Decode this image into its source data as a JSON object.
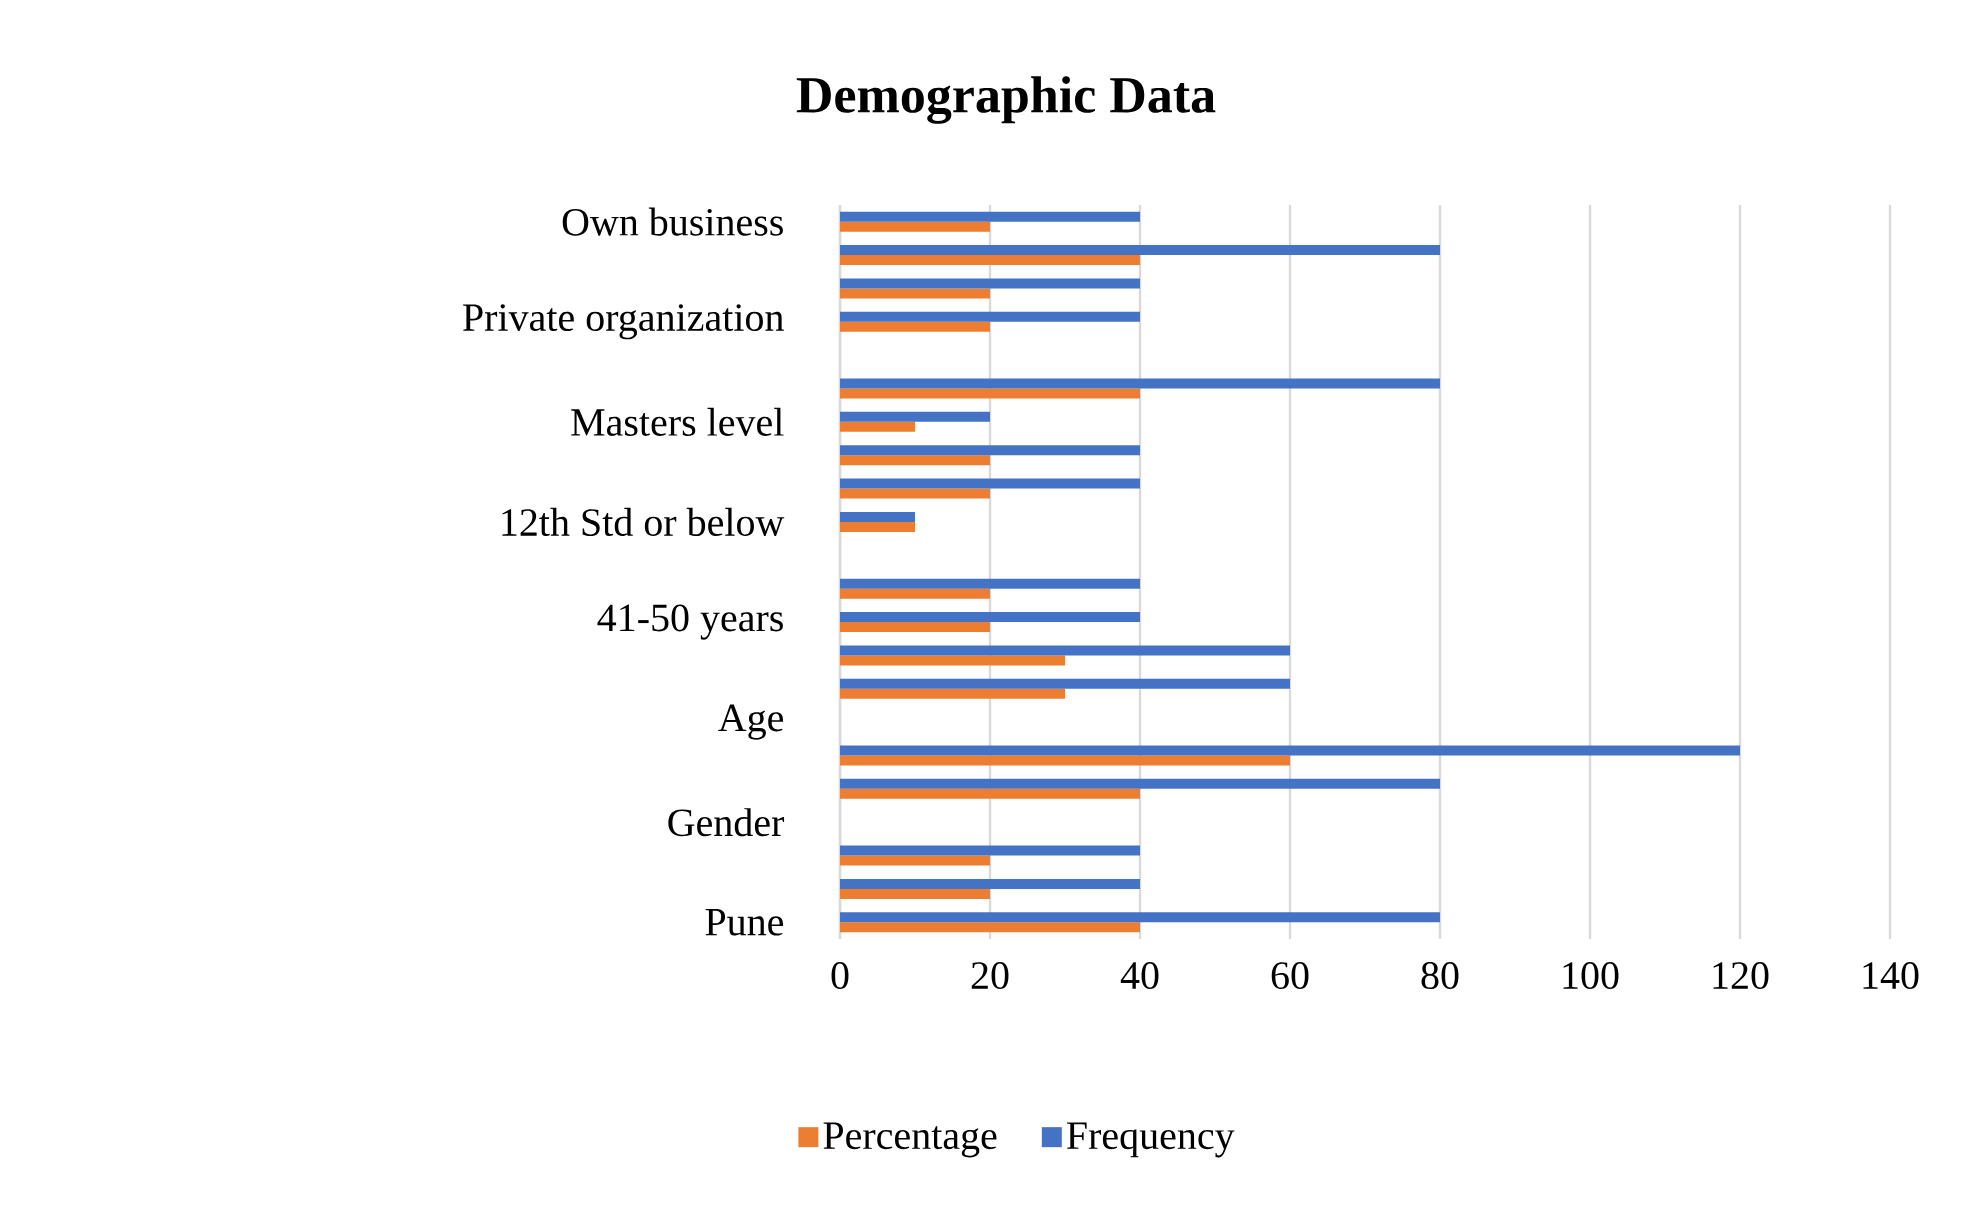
{
  "chart_data": {
    "type": "bar",
    "orientation": "horizontal",
    "title": "Demographic Data",
    "categories": [
      "Own business",
      null,
      null,
      "Private organization",
      null,
      null,
      "Masters level",
      null,
      null,
      "12th Std or below",
      null,
      null,
      "41-50 years",
      null,
      null,
      "Age",
      null,
      null,
      "Gender",
      null,
      null,
      "Pune"
    ],
    "series": [
      {
        "name": "Percentage",
        "color": "#ed7d31",
        "values": [
          20,
          40,
          20,
          20,
          null,
          40,
          10,
          20,
          20,
          10,
          null,
          20,
          20,
          30,
          30,
          null,
          60,
          40,
          null,
          20,
          20,
          40
        ]
      },
      {
        "name": "Frequency",
        "color": "#4472c4",
        "values": [
          40,
          80,
          40,
          40,
          null,
          80,
          20,
          40,
          40,
          10,
          null,
          40,
          40,
          60,
          60,
          null,
          120,
          80,
          null,
          40,
          40,
          80
        ]
      }
    ],
    "xlim": [
      0,
      140
    ],
    "xticks": [
      0,
      20,
      40,
      60,
      80,
      100,
      120,
      140
    ],
    "grid": "x",
    "legend": "bottom"
  }
}
